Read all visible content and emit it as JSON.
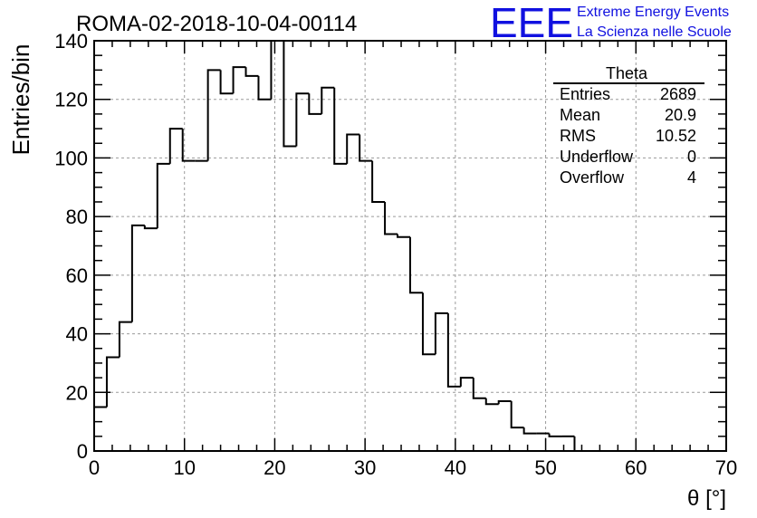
{
  "chart_data": {
    "type": "histogram",
    "title": "ROMA-02-2018-10-04-00114",
    "xlabel": "θ [°]",
    "ylabel": "Entries/bin",
    "xlim": [
      0,
      70
    ],
    "ylim": [
      0,
      140
    ],
    "xticks": [
      "0",
      "10",
      "20",
      "30",
      "40",
      "50",
      "60",
      "70"
    ],
    "yticks": [
      "0",
      "20",
      "40",
      "60",
      "80",
      "100",
      "120",
      "140"
    ],
    "grid": true,
    "bin_width": 1.4,
    "bin_start": 0,
    "values": [
      15,
      32,
      44,
      77,
      76,
      98,
      110,
      99,
      99,
      130,
      122,
      131,
      128,
      120,
      140,
      104,
      122,
      115,
      124,
      98,
      108,
      99,
      85,
      74,
      73,
      54,
      33,
      47,
      22,
      25,
      18,
      16,
      17,
      8,
      6,
      6,
      5,
      5,
      0,
      0,
      0,
      0,
      0,
      0,
      0,
      0,
      0,
      0,
      0,
      0
    ],
    "stats": {
      "name": "Theta",
      "rows": [
        {
          "label": "Entries",
          "value": "2689"
        },
        {
          "label": "Mean",
          "value": "20.9"
        },
        {
          "label": "RMS",
          "value": "10.52"
        },
        {
          "label": "Underflow",
          "value": "0"
        },
        {
          "label": "Overflow",
          "value": "4"
        }
      ]
    }
  },
  "logo": {
    "mark": "EEE",
    "line1": "Extreme Energy Events",
    "line2": "La Scienza nelle Scuole",
    "color": "#1010e0"
  }
}
